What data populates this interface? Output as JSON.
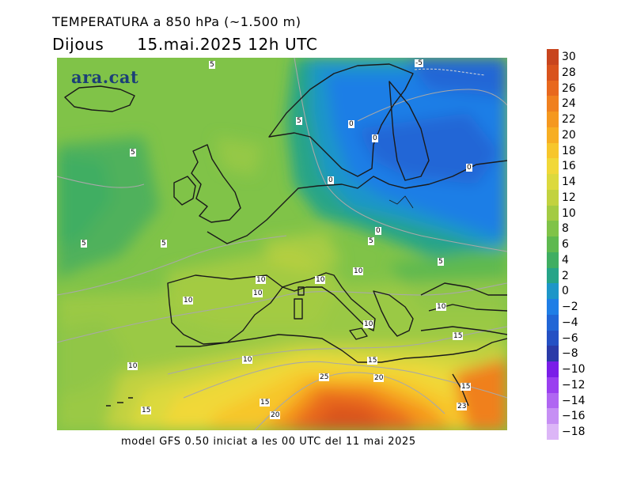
{
  "header": {
    "title": "TEMPERATURA a 850 hPa (~1.500 m)",
    "day": "Dijous",
    "datetime": "15.mai.2025 12h UTC"
  },
  "logo": {
    "text": "ara.cat"
  },
  "footer": {
    "text": "model GFS 0.50 iniciat a les 00 UTC del 11 mai 2025"
  },
  "colorbar": {
    "unit_hint": "",
    "levels": [
      "30",
      "28",
      "26",
      "24",
      "22",
      "20",
      "18",
      "16",
      "14",
      "12",
      "10",
      "8",
      "6",
      "4",
      "2",
      "0",
      "−2",
      "−4",
      "−6",
      "−8",
      "−10",
      "−12",
      "−14",
      "−16",
      "−18"
    ],
    "colors": [
      "#c8451e",
      "#d9531d",
      "#e8681e",
      "#f0801f",
      "#f5981f",
      "#f7ae22",
      "#f7c62b",
      "#f1d838",
      "#dcd93d",
      "#c2d23f",
      "#a3cb43",
      "#80c348",
      "#5eb94f",
      "#3fae62",
      "#25a488",
      "#1d96c8",
      "#1f7ee6",
      "#2166d6",
      "#2450c4",
      "#2a3aa8",
      "#7a1ee8",
      "#9a3ff0",
      "#b066f2",
      "#c68ff4",
      "#dcb6f7"
    ]
  },
  "contour_labels": [
    {
      "text": "5"
    },
    {
      "text": "-5"
    },
    {
      "text": "5"
    },
    {
      "text": "0"
    },
    {
      "text": "0"
    },
    {
      "text": "5"
    },
    {
      "text": "0"
    },
    {
      "text": "0"
    },
    {
      "text": "5"
    },
    {
      "text": "5"
    },
    {
      "text": "0"
    },
    {
      "text": "5"
    },
    {
      "text": "5"
    },
    {
      "text": "10"
    },
    {
      "text": "10"
    },
    {
      "text": "10"
    },
    {
      "text": "10"
    },
    {
      "text": "10"
    },
    {
      "text": "10"
    },
    {
      "text": "10"
    },
    {
      "text": "15"
    },
    {
      "text": "10"
    },
    {
      "text": "10"
    },
    {
      "text": "15"
    },
    {
      "text": "25"
    },
    {
      "text": "20"
    },
    {
      "text": "15"
    },
    {
      "text": "15"
    },
    {
      "text": "15"
    },
    {
      "text": "20"
    },
    {
      "text": "23"
    }
  ]
}
